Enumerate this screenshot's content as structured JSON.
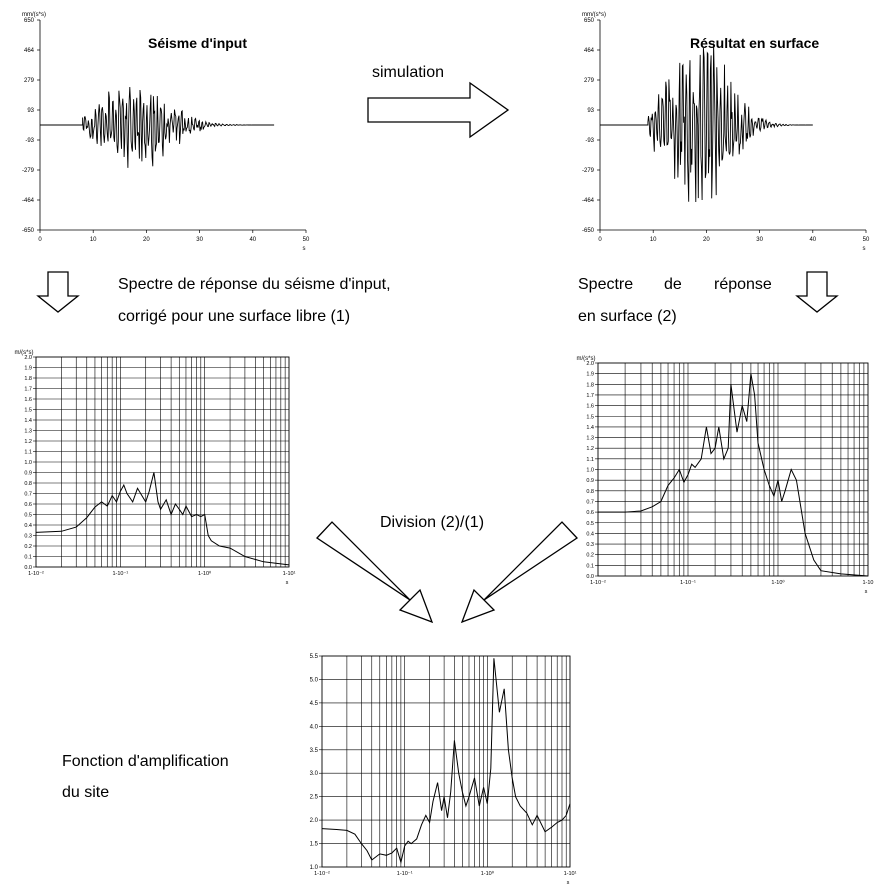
{
  "labels": {
    "simulation": "simulation",
    "spectrum_input_line1": "Spectre de réponse du séisme d'input,",
    "spectrum_input_line2": "corrigé pour une surface libre (1)",
    "spectrum_surface_line1_a": "Spectre",
    "spectrum_surface_line1_b": "de",
    "spectrum_surface_line1_c": "réponse",
    "spectrum_surface_line2": "en surface (2)",
    "division": "Division (2)/(1)",
    "amplification_line1": "Fonction d'amplification",
    "amplification_line2": "du site"
  },
  "chart_data": [
    {
      "id": "input",
      "type": "line",
      "title": "Séisme d'input",
      "ylabel": "mm/(s*s)",
      "xlabel": "s",
      "xlim": [
        0,
        50
      ],
      "ylim": [
        -650,
        650
      ],
      "xticks": [
        "0",
        "10",
        "20",
        "30",
        "40",
        "50"
      ],
      "yticks": [
        "650",
        "464",
        "279",
        "93",
        "-93",
        "-279",
        "-464",
        "-650"
      ],
      "signal": {
        "start": 8,
        "end": 44,
        "peak_time": 18,
        "peak_amplitude": 300,
        "flat_until": 44
      }
    },
    {
      "id": "surface",
      "type": "line",
      "title": "Résultat en surface",
      "ylabel": "mm/(s*s)",
      "xlabel": "s",
      "xlim": [
        0,
        50
      ],
      "ylim": [
        -650,
        650
      ],
      "xticks": [
        "0",
        "10",
        "20",
        "30",
        "40",
        "50"
      ],
      "yticks": [
        "650",
        "464",
        "279",
        "93",
        "-93",
        "-279",
        "-464",
        "-650"
      ],
      "signal": {
        "start": 9,
        "end": 40,
        "peak_time": 18.5,
        "peak_amplitude": 600,
        "flat_until": 40
      }
    },
    {
      "id": "spectrum1",
      "type": "line",
      "ylabel": "m/(s*s)",
      "xlabel": "s",
      "xscale": "log",
      "xlim": [
        0.01,
        10
      ],
      "ylim": [
        0,
        2.0
      ],
      "xticks": [
        "1-10⁻²",
        "1-10⁻¹",
        "1-10⁰",
        "1-10¹"
      ],
      "yticks": [
        "0.0",
        "0.1",
        "0.2",
        "0.3",
        "0.4",
        "0.5",
        "0.6",
        "0.7",
        "0.8",
        "0.9",
        "1.0",
        "1.1",
        "1.2",
        "1.3",
        "1.4",
        "1.5",
        "1.6",
        "1.7",
        "1.8",
        "1.9",
        "2.0"
      ],
      "x": [
        0.01,
        0.02,
        0.03,
        0.04,
        0.05,
        0.06,
        0.07,
        0.08,
        0.09,
        0.1,
        0.11,
        0.12,
        0.14,
        0.16,
        0.18,
        0.2,
        0.22,
        0.25,
        0.28,
        0.3,
        0.35,
        0.4,
        0.45,
        0.5,
        0.55,
        0.6,
        0.7,
        0.8,
        0.9,
        1.0,
        1.1,
        1.2,
        1.5,
        2.0,
        3.0,
        5.0,
        10.0
      ],
      "y": [
        0.33,
        0.34,
        0.38,
        0.47,
        0.57,
        0.62,
        0.58,
        0.68,
        0.62,
        0.72,
        0.78,
        0.7,
        0.62,
        0.75,
        0.68,
        0.62,
        0.72,
        0.9,
        0.62,
        0.55,
        0.64,
        0.5,
        0.6,
        0.55,
        0.5,
        0.58,
        0.48,
        0.5,
        0.48,
        0.5,
        0.3,
        0.25,
        0.2,
        0.18,
        0.1,
        0.05,
        0.02
      ]
    },
    {
      "id": "spectrum2",
      "type": "line",
      "ylabel": "m/(s*s)",
      "xlabel": "s",
      "xscale": "log",
      "xlim": [
        0.01,
        10
      ],
      "ylim": [
        0,
        2.0
      ],
      "xticks": [
        "1-10⁻²",
        "1-10⁻¹",
        "1-10⁰",
        "1-10"
      ],
      "yticks": [
        "0.0",
        "0.1",
        "0.2",
        "0.3",
        "0.4",
        "0.5",
        "0.6",
        "0.7",
        "0.8",
        "0.9",
        "1.0",
        "1.1",
        "1.2",
        "1.3",
        "1.4",
        "1.5",
        "1.6",
        "1.7",
        "1.8",
        "1.9",
        "2.0"
      ],
      "x": [
        0.01,
        0.02,
        0.03,
        0.04,
        0.05,
        0.06,
        0.07,
        0.08,
        0.09,
        0.1,
        0.11,
        0.12,
        0.14,
        0.16,
        0.18,
        0.2,
        0.22,
        0.25,
        0.28,
        0.3,
        0.35,
        0.4,
        0.45,
        0.5,
        0.55,
        0.6,
        0.7,
        0.8,
        0.9,
        1.0,
        1.1,
        1.2,
        1.4,
        1.6,
        2.0,
        2.5,
        3.0,
        5.0,
        10.0
      ],
      "y": [
        0.6,
        0.6,
        0.61,
        0.65,
        0.7,
        0.85,
        0.92,
        1.0,
        0.88,
        0.95,
        1.05,
        1.02,
        1.1,
        1.4,
        1.15,
        1.2,
        1.4,
        1.1,
        1.2,
        1.8,
        1.35,
        1.6,
        1.45,
        1.9,
        1.7,
        1.25,
        1.0,
        0.85,
        0.75,
        0.9,
        0.7,
        0.8,
        1.0,
        0.9,
        0.4,
        0.15,
        0.05,
        0.02,
        0.0
      ]
    },
    {
      "id": "amplification",
      "type": "line",
      "xscale": "log",
      "xlabel": "s",
      "xlim": [
        0.01,
        10
      ],
      "ylim": [
        1.0,
        5.5
      ],
      "xticks": [
        "1-10⁻²",
        "1-10⁻¹",
        "1-10⁰",
        "1-10¹"
      ],
      "yticks": [
        "1.0",
        "1.5",
        "2.0",
        "2.5",
        "3.0",
        "3.5",
        "4.0",
        "4.5",
        "5.0",
        "5.5"
      ],
      "x": [
        0.01,
        0.015,
        0.02,
        0.025,
        0.03,
        0.035,
        0.04,
        0.05,
        0.06,
        0.07,
        0.08,
        0.09,
        0.1,
        0.11,
        0.12,
        0.14,
        0.16,
        0.18,
        0.2,
        0.22,
        0.25,
        0.28,
        0.3,
        0.33,
        0.36,
        0.4,
        0.45,
        0.5,
        0.55,
        0.6,
        0.7,
        0.8,
        0.9,
        1.0,
        1.1,
        1.2,
        1.4,
        1.6,
        1.8,
        2.0,
        2.2,
        2.5,
        3.0,
        3.5,
        4.0,
        5.0,
        6.0,
        7.0,
        8.0,
        9.0,
        10.0
      ],
      "y": [
        1.82,
        1.8,
        1.78,
        1.7,
        1.5,
        1.35,
        1.15,
        1.28,
        1.25,
        1.3,
        1.4,
        1.1,
        1.45,
        1.55,
        1.5,
        1.6,
        1.9,
        2.1,
        1.95,
        2.4,
        2.8,
        2.2,
        2.5,
        2.05,
        2.6,
        3.7,
        3.0,
        2.6,
        2.3,
        2.5,
        2.9,
        2.3,
        2.7,
        2.35,
        3.1,
        5.45,
        4.3,
        4.8,
        3.5,
        2.9,
        2.5,
        2.3,
        2.15,
        1.9,
        2.1,
        1.75,
        1.85,
        1.95,
        2.0,
        2.1,
        2.35
      ]
    }
  ]
}
